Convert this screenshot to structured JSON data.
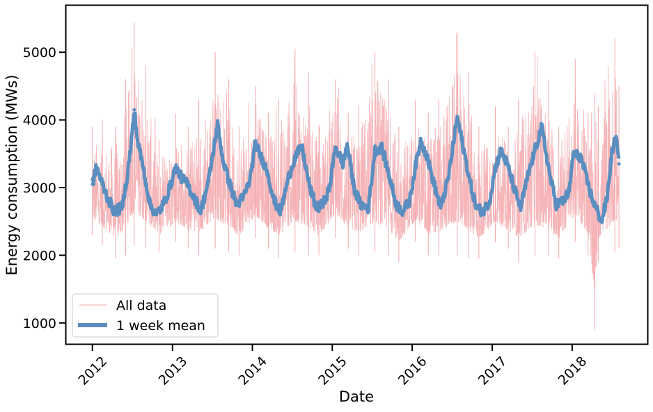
{
  "chart_data": {
    "type": "line",
    "xlabel": "Date",
    "ylabel": "Energy consumption (MWs)",
    "xlim": [
      "2011-09-03",
      "2018-12-11"
    ],
    "ylim": [
      690,
      5690
    ],
    "x_ticks": [
      {
        "label": "2012",
        "date": "2012-01-01"
      },
      {
        "label": "2013",
        "date": "2013-01-01"
      },
      {
        "label": "2014",
        "date": "2014-01-01"
      },
      {
        "label": "2015",
        "date": "2015-01-01"
      },
      {
        "label": "2016",
        "date": "2016-01-01"
      },
      {
        "label": "2017",
        "date": "2017-01-01"
      },
      {
        "label": "2018",
        "date": "2018-01-01"
      }
    ],
    "y_ticks": [
      1000,
      2000,
      3000,
      4000,
      5000
    ],
    "legend_position": "bottom-left",
    "series": [
      {
        "name": "All data",
        "color": "#f4a8ab",
        "style": "thin line, hourly values",
        "x_range": [
          "2012-01-01",
          "2018-08-03"
        ],
        "envelope": {
          "x": [
            "2012-01-01",
            "2012-02-15",
            "2012-04-15",
            "2012-06-01",
            "2012-07-10",
            "2012-09-01",
            "2012-11-01",
            "2013-01-15",
            "2013-03-15",
            "2013-05-01",
            "2013-07-15",
            "2013-09-15",
            "2013-11-01",
            "2014-01-15",
            "2014-03-15",
            "2014-05-01",
            "2014-07-15",
            "2014-09-15",
            "2014-11-01",
            "2015-01-15",
            "2015-03-15",
            "2015-05-01",
            "2015-07-15",
            "2015-09-15",
            "2015-11-01",
            "2016-01-15",
            "2016-03-15",
            "2016-05-01",
            "2016-07-25",
            "2016-09-15",
            "2016-11-01",
            "2017-01-15",
            "2017-03-15",
            "2017-05-01",
            "2017-07-15",
            "2017-09-15",
            "2017-11-01",
            "2018-01-15",
            "2018-03-15",
            "2018-04-15",
            "2018-05-01",
            "2018-07-15",
            "2018-08-03"
          ],
          "max": [
            3900,
            4000,
            3900,
            4600,
            5450,
            4800,
            3700,
            4100,
            3900,
            4300,
            5000,
            4600,
            3900,
            4500,
            4100,
            4300,
            5050,
            4700,
            3900,
            4600,
            4100,
            4200,
            5000,
            4600,
            3900,
            4300,
            4100,
            4300,
            5300,
            4700,
            3900,
            4200,
            3900,
            4300,
            5000,
            4600,
            3900,
            4900,
            4100,
            4400,
            4200,
            5200,
            4500
          ],
          "min": [
            2300,
            2150,
            1950,
            2000,
            2150,
            2100,
            2050,
            2200,
            2100,
            2000,
            2100,
            2050,
            2000,
            2250,
            2100,
            1950,
            2050,
            2000,
            2000,
            2250,
            2100,
            2000,
            2050,
            2000,
            1900,
            2200,
            2000,
            2000,
            2000,
            1950,
            1950,
            2200,
            2100,
            1900,
            2000,
            2000,
            1950,
            2200,
            2000,
            900,
            1900,
            2050,
            2100
          ]
        }
      },
      {
        "name": "1 week  mean",
        "color": "#5b8ec0",
        "style": "thick line, 1 week rolling mean",
        "x": [
          "2012-01-01",
          "2012-01-20",
          "2012-02-10",
          "2012-03-10",
          "2012-04-10",
          "2012-05-15",
          "2012-06-10",
          "2012-07-01",
          "2012-07-10",
          "2012-07-25",
          "2012-08-20",
          "2012-09-20",
          "2012-10-20",
          "2012-11-20",
          "2012-12-20",
          "2013-01-15",
          "2013-02-10",
          "2013-03-10",
          "2013-04-10",
          "2013-05-10",
          "2013-06-15",
          "2013-07-10",
          "2013-07-25",
          "2013-08-20",
          "2013-09-20",
          "2013-10-20",
          "2013-11-20",
          "2013-12-20",
          "2014-01-15",
          "2014-02-10",
          "2014-03-10",
          "2014-04-10",
          "2014-05-10",
          "2014-06-15",
          "2014-07-15",
          "2014-08-15",
          "2014-09-20",
          "2014-10-20",
          "2014-11-20",
          "2014-12-20",
          "2015-01-15",
          "2015-02-20",
          "2015-03-10",
          "2015-04-10",
          "2015-05-10",
          "2015-06-15",
          "2015-07-15",
          "2015-08-15",
          "2015-09-20",
          "2015-10-20",
          "2015-11-20",
          "2015-12-20",
          "2016-01-15",
          "2016-02-10",
          "2016-03-10",
          "2016-04-10",
          "2016-05-10",
          "2016-06-15",
          "2016-07-25",
          "2016-08-15",
          "2016-09-20",
          "2016-10-20",
          "2016-11-20",
          "2016-12-20",
          "2017-01-15",
          "2017-02-10",
          "2017-03-10",
          "2017-04-10",
          "2017-05-10",
          "2017-06-15",
          "2017-07-15",
          "2017-08-15",
          "2017-09-20",
          "2017-10-20",
          "2017-11-20",
          "2017-12-20",
          "2018-01-05",
          "2018-02-10",
          "2018-03-10",
          "2018-04-01",
          "2018-04-20",
          "2018-05-15",
          "2018-06-10",
          "2018-07-01",
          "2018-07-20",
          "2018-08-03"
        ],
        "y": [
          3050,
          3300,
          3100,
          2850,
          2650,
          2700,
          3200,
          3800,
          4150,
          3700,
          3300,
          2750,
          2600,
          2750,
          3000,
          3300,
          3150,
          3050,
          2850,
          2650,
          3100,
          3600,
          3950,
          3400,
          3050,
          2750,
          2850,
          3100,
          3650,
          3450,
          3250,
          2800,
          2650,
          3150,
          3450,
          3600,
          3000,
          2700,
          2750,
          3000,
          3600,
          3350,
          3650,
          3000,
          2750,
          2700,
          3550,
          3600,
          3150,
          2750,
          2650,
          2800,
          3300,
          3700,
          3450,
          3050,
          2700,
          3150,
          4050,
          3700,
          3100,
          2700,
          2650,
          2800,
          3300,
          3550,
          3350,
          3000,
          2700,
          3200,
          3550,
          3900,
          3200,
          2750,
          2800,
          2950,
          3500,
          3450,
          3100,
          2850,
          2700,
          2500,
          2850,
          3500,
          3750,
          3350
        ]
      }
    ]
  }
}
